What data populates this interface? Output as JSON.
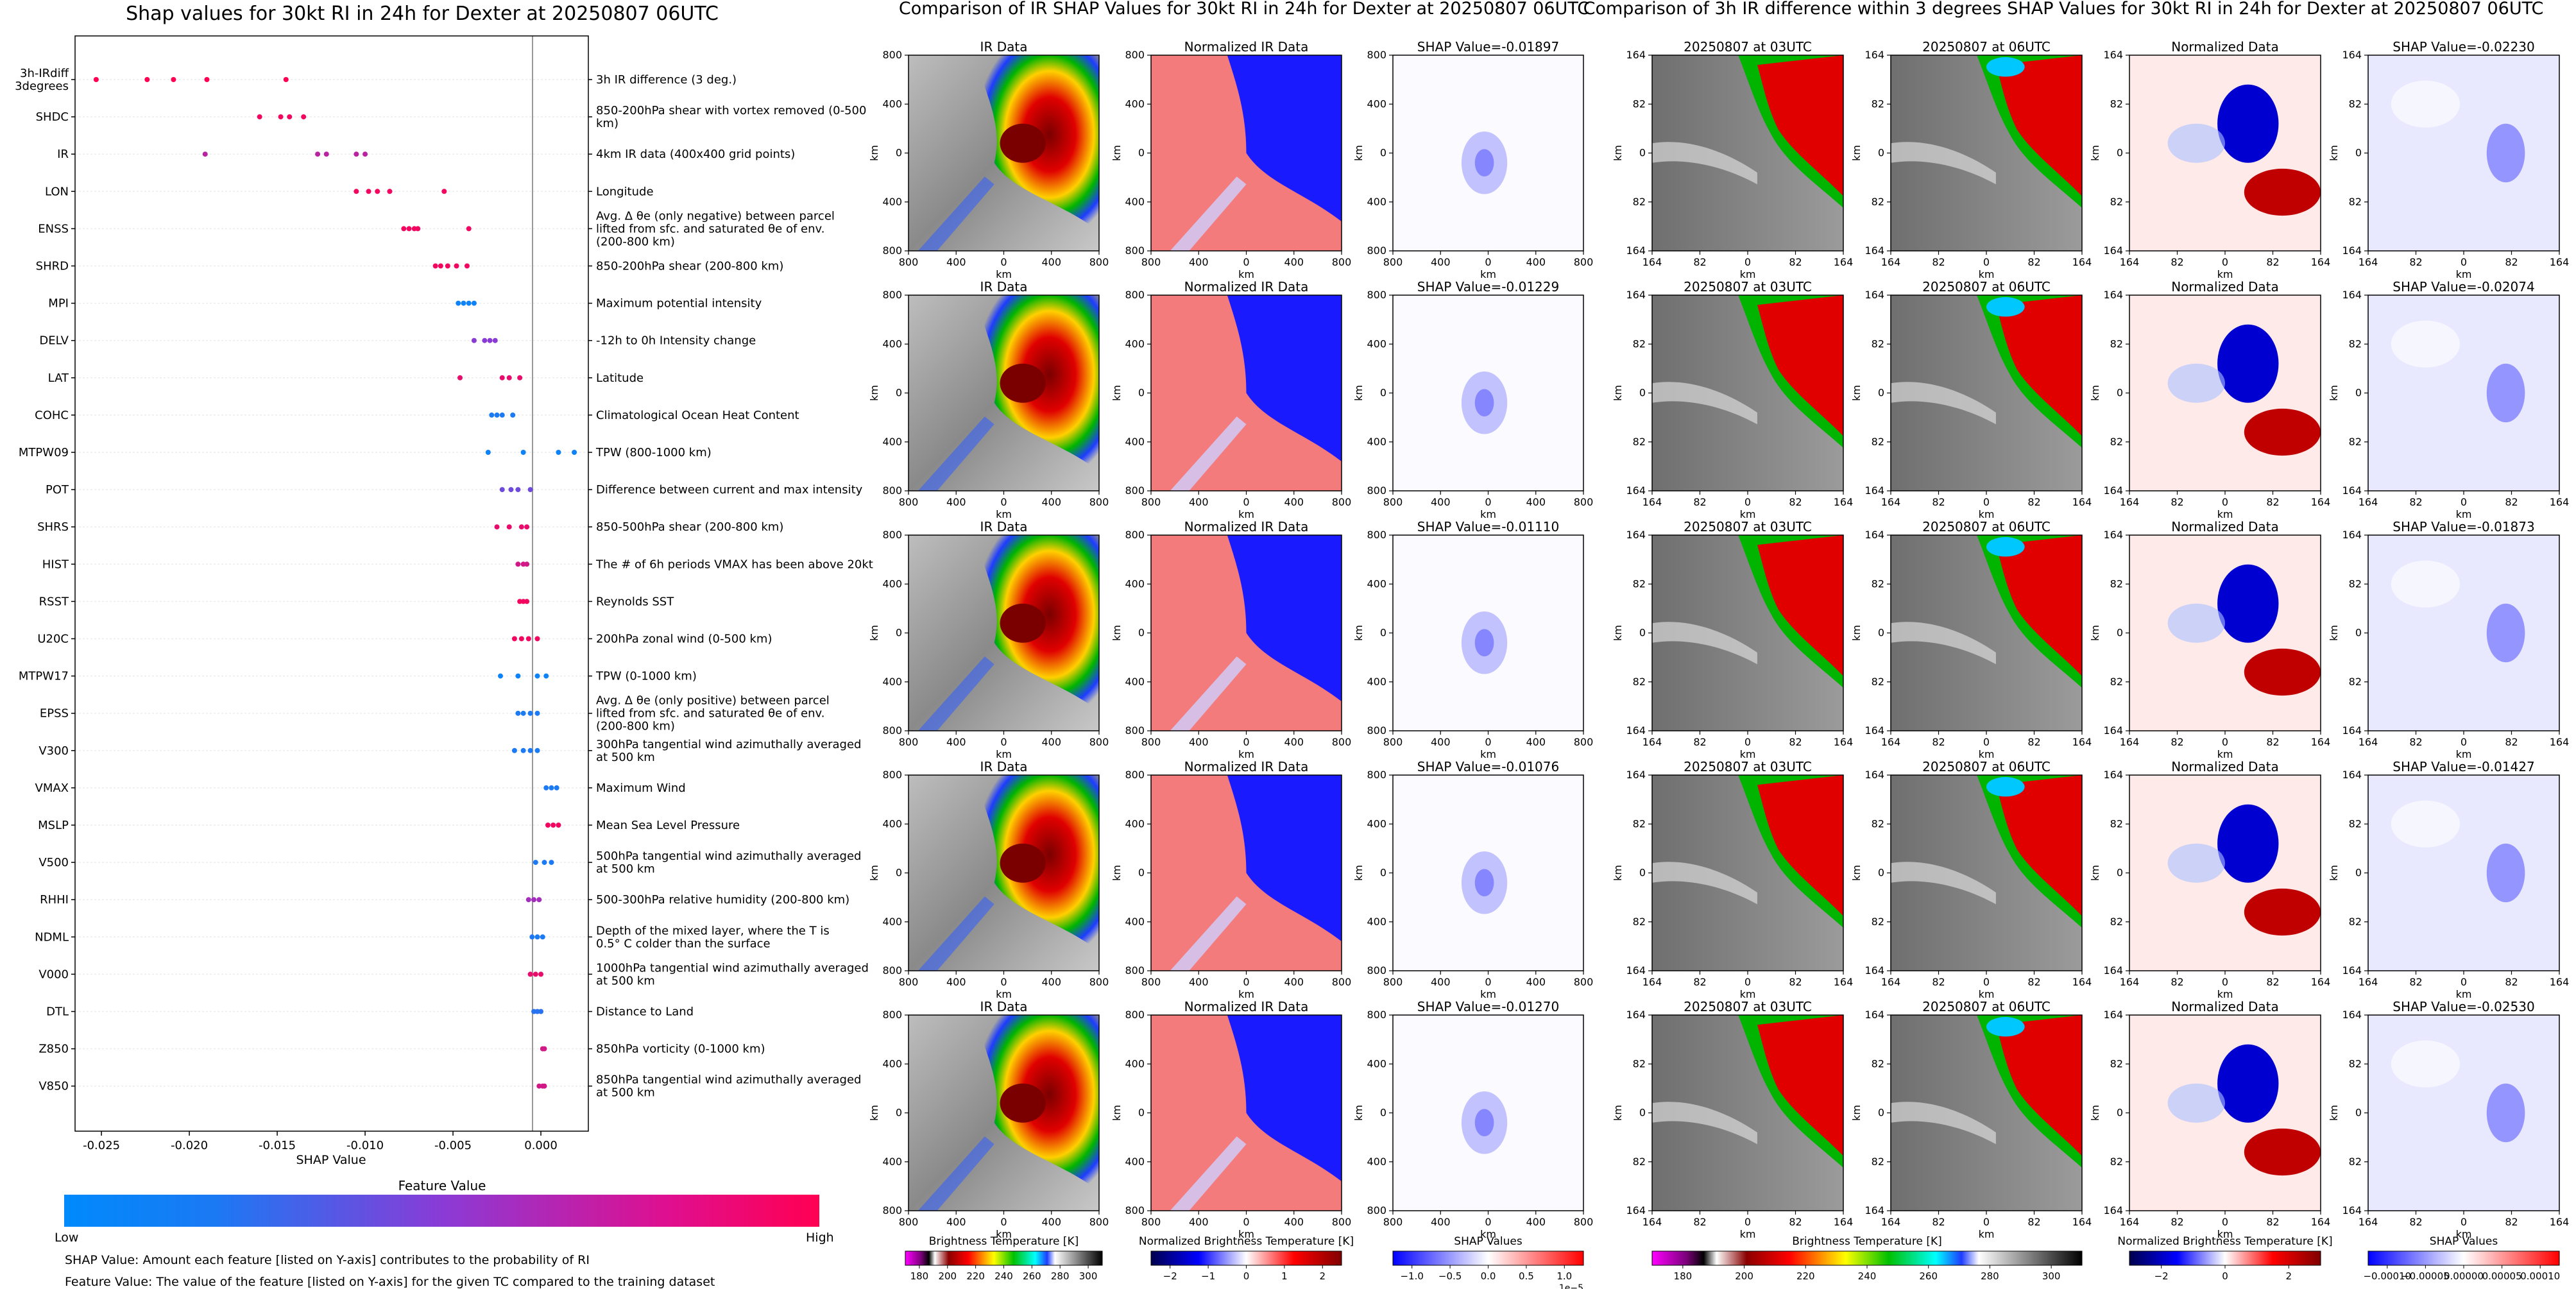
{
  "colors": {
    "low": "#008afb",
    "mid": "#8a3bd6",
    "high": "#ff0052",
    "grid": "#ececec"
  },
  "beeswarm": {
    "title": "Shap values for 30kt RI in 24h for Dexter at 20250807 06UTC",
    "xlabel": "SHAP Value",
    "xticks": [
      "-0.025",
      "-0.020",
      "-0.015",
      "-0.010",
      "-0.005",
      "0.000"
    ]
  },
  "colorbar": {
    "title": "Feature Value",
    "low": "Low",
    "high": "High"
  },
  "notes": [
    "SHAP Value: Amount each feature [listed on Y-axis] contributes to the probability of RI",
    "Feature Value: The value of the feature [listed on Y-axis] for the given TC compared to the training dataset"
  ],
  "chart_data": [
    {
      "type": "scatter",
      "title": "Shap values for 30kt RI in 24h for Dexter at 20250807 06UTC",
      "xlabel": "SHAP Value",
      "xlim": [
        -0.0265,
        0.0027
      ],
      "grid": "horizontal",
      "colorbar": {
        "label": "Feature Value",
        "min_label": "Low",
        "max_label": "High"
      },
      "features": [
        {
          "name": "3h-IRdiff 3degrees",
          "desc": "3h IR difference (3 deg.)",
          "points": [
            [
              -0.0253,
              1
            ],
            [
              -0.0224,
              1
            ],
            [
              -0.0209,
              1
            ],
            [
              -0.019,
              1
            ],
            [
              -0.0145,
              1
            ]
          ]
        },
        {
          "name": "SHDC",
          "desc": "850-200hPa shear with vortex removed (0-500 km)",
          "points": [
            [
              -0.016,
              0.95
            ],
            [
              -0.0148,
              0.95
            ],
            [
              -0.0143,
              0.95
            ],
            [
              -0.0135,
              0.95
            ]
          ]
        },
        {
          "name": "IR",
          "desc": "4km IR data (400x400 grid points)",
          "points": [
            [
              -0.0191,
              0.7
            ],
            [
              -0.0127,
              0.7
            ],
            [
              -0.0122,
              0.7
            ],
            [
              -0.0105,
              0.7
            ],
            [
              -0.01,
              0.7
            ]
          ]
        },
        {
          "name": "LON",
          "desc": "Longitude",
          "points": [
            [
              -0.0105,
              0.95
            ],
            [
              -0.0098,
              0.95
            ],
            [
              -0.0093,
              0.95
            ],
            [
              -0.0086,
              0.95
            ],
            [
              -0.0055,
              0.95
            ]
          ]
        },
        {
          "name": "ENSS",
          "desc": "Avg. Δ θe (only negative) between parcel lifted from sfc. and saturated θe of env. (200-800 km)",
          "points": [
            [
              -0.0078,
              0.95
            ],
            [
              -0.0075,
              0.95
            ],
            [
              -0.0072,
              0.95
            ],
            [
              -0.007,
              0.95
            ],
            [
              -0.0041,
              0.95
            ]
          ]
        },
        {
          "name": "SHRD",
          "desc": "850-200hPa shear (200-800 km)",
          "points": [
            [
              -0.006,
              0.95
            ],
            [
              -0.0057,
              0.95
            ],
            [
              -0.0053,
              0.95
            ],
            [
              -0.0048,
              0.95
            ],
            [
              -0.0042,
              0.95
            ]
          ]
        },
        {
          "name": "MPI",
          "desc": "Maximum potential intensity",
          "points": [
            [
              -0.0047,
              0.05
            ],
            [
              -0.0044,
              0.05
            ],
            [
              -0.0041,
              0.05
            ],
            [
              -0.0038,
              0.05
            ]
          ]
        },
        {
          "name": "DELV",
          "desc": "-12h to 0h Intensity change",
          "points": [
            [
              -0.0038,
              0.5
            ],
            [
              -0.0032,
              0.5
            ],
            [
              -0.0029,
              0.5
            ],
            [
              -0.0026,
              0.5
            ]
          ]
        },
        {
          "name": "LAT",
          "desc": "Latitude",
          "points": [
            [
              -0.0046,
              0.9
            ],
            [
              -0.0022,
              0.9
            ],
            [
              -0.0018,
              0.9
            ],
            [
              -0.0012,
              0.9
            ]
          ]
        },
        {
          "name": "COHC",
          "desc": "Climatological Ocean Heat Content",
          "points": [
            [
              -0.0028,
              0.1
            ],
            [
              -0.0025,
              0.1
            ],
            [
              -0.0022,
              0.1
            ],
            [
              -0.0016,
              0.1
            ]
          ]
        },
        {
          "name": "MTPW09",
          "desc": "TPW (800-1000 km)",
          "points": [
            [
              -0.003,
              0.05
            ],
            [
              -0.001,
              0.05
            ],
            [
              0.001,
              0.05
            ],
            [
              0.0019,
              0.05
            ]
          ]
        },
        {
          "name": "POT",
          "desc": "Difference between current and max intensity",
          "points": [
            [
              -0.0022,
              0.4
            ],
            [
              -0.0017,
              0.4
            ],
            [
              -0.0013,
              0.4
            ],
            [
              -0.0006,
              0.4
            ]
          ]
        },
        {
          "name": "SHRS",
          "desc": "850-500hPa shear (200-800 km)",
          "points": [
            [
              -0.0025,
              0.9
            ],
            [
              -0.0018,
              0.9
            ],
            [
              -0.0011,
              0.9
            ],
            [
              -0.0008,
              0.9
            ]
          ]
        },
        {
          "name": "HIST",
          "desc": "The # of 6h periods VMAX has been above 20kt",
          "points": [
            [
              -0.0013,
              0.8
            ],
            [
              -0.001,
              0.8
            ],
            [
              -0.0008,
              0.8
            ]
          ]
        },
        {
          "name": "RSST",
          "desc": "Reynolds SST",
          "points": [
            [
              -0.0012,
              0.95
            ],
            [
              -0.001,
              0.95
            ],
            [
              -0.0008,
              0.95
            ]
          ]
        },
        {
          "name": "U20C",
          "desc": "200hPa zonal wind (0-500 km)",
          "points": [
            [
              -0.0015,
              0.95
            ],
            [
              -0.0011,
              0.95
            ],
            [
              -0.0007,
              0.95
            ],
            [
              -0.0002,
              0.95
            ]
          ]
        },
        {
          "name": "MTPW17",
          "desc": "TPW (0-1000 km)",
          "points": [
            [
              -0.0023,
              0.05
            ],
            [
              -0.0013,
              0.05
            ],
            [
              -0.0002,
              0.05
            ],
            [
              0.0003,
              0.05
            ]
          ]
        },
        {
          "name": "EPSS",
          "desc": "Avg. Δ θe (only positive) between parcel lifted from sfc. and saturated θe of env. (200-800 km)",
          "points": [
            [
              -0.0013,
              0.1
            ],
            [
              -0.001,
              0.1
            ],
            [
              -0.0006,
              0.1
            ],
            [
              -0.0002,
              0.1
            ]
          ]
        },
        {
          "name": "V300",
          "desc": "300hPa tangential wind azimuthally averaged at 500 km",
          "points": [
            [
              -0.0015,
              0.1
            ],
            [
              -0.001,
              0.1
            ],
            [
              -0.0006,
              0.1
            ],
            [
              -0.0002,
              0.1
            ]
          ]
        },
        {
          "name": "VMAX",
          "desc": "Maximum Wind",
          "points": [
            [
              0.0003,
              0.1
            ],
            [
              0.0006,
              0.1
            ],
            [
              0.0009,
              0.1
            ]
          ]
        },
        {
          "name": "MSLP",
          "desc": "Mean Sea Level Pressure",
          "points": [
            [
              0.0004,
              0.95
            ],
            [
              0.0007,
              0.95
            ],
            [
              0.001,
              0.95
            ]
          ]
        },
        {
          "name": "V500",
          "desc": "500hPa tangential wind azimuthally averaged at 500 km",
          "points": [
            [
              -0.0003,
              0.1
            ],
            [
              0.0002,
              0.1
            ],
            [
              0.0006,
              0.1
            ]
          ]
        },
        {
          "name": "RHHI",
          "desc": "500-300hPa relative humidity (200-800 km)",
          "points": [
            [
              -0.0007,
              0.6
            ],
            [
              -0.0004,
              0.6
            ],
            [
              -0.0001,
              0.6
            ]
          ]
        },
        {
          "name": "NDML",
          "desc": "Depth of the mixed layer, where the T is 0.5° C colder than the surface",
          "points": [
            [
              -0.0005,
              0.1
            ],
            [
              -0.0002,
              0.1
            ],
            [
              0.0001,
              0.1
            ]
          ]
        },
        {
          "name": "V000",
          "desc": "1000hPa tangential wind azimuthally averaged at 500 km",
          "points": [
            [
              -0.0006,
              0.9
            ],
            [
              -0.0003,
              0.9
            ],
            [
              0.0,
              0.9
            ]
          ]
        },
        {
          "name": "DTL",
          "desc": "Distance to Land",
          "points": [
            [
              -0.0004,
              0.15
            ],
            [
              -0.0002,
              0.15
            ],
            [
              0.0,
              0.15
            ]
          ]
        },
        {
          "name": "Z850",
          "desc": "850hPa vorticity (0-1000 km)",
          "points": [
            [
              0.0001,
              0.8
            ],
            [
              0.0002,
              0.8
            ]
          ]
        },
        {
          "name": "V850",
          "desc": "850hPa tangential wind azimuthally averaged at 500 km",
          "points": [
            [
              -0.0001,
              0.8
            ],
            [
              0.0001,
              0.8
            ],
            [
              0.0002,
              0.8
            ]
          ]
        }
      ]
    },
    {
      "type": "heatmap",
      "title": "Comparison of IR SHAP Values for 30kt RI in 24h for Dexter at 20250807 06UTC",
      "columns": [
        "IR Data",
        "Normalized IR Data",
        "SHAP Value"
      ],
      "xlabel": "km",
      "ylabel": "km",
      "xticks": [
        "800",
        "400",
        "0",
        "400",
        "800"
      ],
      "yticks": [
        "800",
        "400",
        "0",
        "400",
        "800"
      ],
      "shap_values": [
        "-0.01897",
        "-0.01229",
        "-0.01110",
        "-0.01076",
        "-0.01270"
      ],
      "shap_prefix": "SHAP Value=",
      "colorbars": [
        {
          "label": "Brightness Temperature [K]",
          "ticks": [
            "180",
            "200",
            "220",
            "240",
            "260",
            "280",
            "300"
          ]
        },
        {
          "label": "Normalized Brightness Temperature [K]",
          "ticks": [
            "−2",
            "−1",
            "0",
            "1",
            "2"
          ]
        },
        {
          "label": "SHAP Values",
          "ticks": [
            "−1.0",
            "−0.5",
            "0.0",
            "0.5",
            "1.0"
          ],
          "offset": "1e−5"
        }
      ]
    },
    {
      "type": "heatmap",
      "title": "Comparison of 3h IR difference within 3 degrees SHAP Values for 30kt RI in 24h for Dexter at 20250807 06UTC",
      "columns": [
        "20250807 at 03UTC",
        "20250807 at 06UTC",
        "Normalized Data",
        "SHAP Value"
      ],
      "xlabel": "km",
      "ylabel": "km",
      "xticks": [
        "164",
        "82",
        "0",
        "82",
        "164"
      ],
      "yticks": [
        "164",
        "82",
        "0",
        "82",
        "164"
      ],
      "shap_values": [
        "-0.02230",
        "-0.02074",
        "-0.01873",
        "-0.01427",
        "-0.02530"
      ],
      "shap_prefix": "SHAP Value=",
      "colorbars": [
        {
          "label": "Brightness Temperature [K]",
          "ticks": [
            "180",
            "200",
            "220",
            "240",
            "260",
            "280",
            "300"
          ]
        },
        {
          "label": "Normalized Brightness Temperature [K]",
          "ticks": [
            "−2",
            "0",
            "2"
          ]
        },
        {
          "label": "SHAP Values",
          "ticks": [
            "−0.00010",
            "−0.00005",
            "0.00000",
            "0.00005",
            "0.00010"
          ]
        }
      ]
    }
  ]
}
